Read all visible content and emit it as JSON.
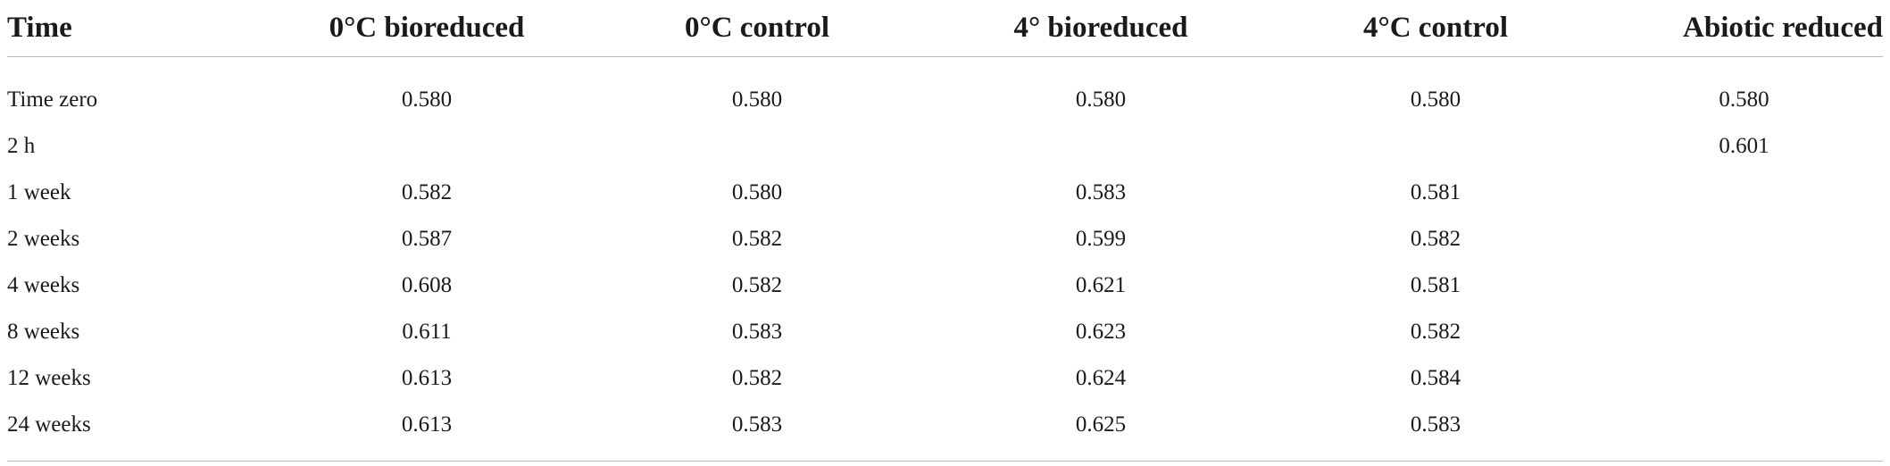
{
  "table": {
    "headers": [
      "Time",
      "0°C bioreduced",
      "0°C control",
      "4° bioreduced",
      "4°C control",
      "Abiotic reduced"
    ],
    "rows": [
      [
        "Time zero",
        "0.580",
        "0.580",
        "0.580",
        "0.580",
        "0.580"
      ],
      [
        "2 h",
        "",
        "",
        "",
        "",
        "0.601"
      ],
      [
        "1 week",
        "0.582",
        "0.580",
        "0.583",
        "0.581",
        ""
      ],
      [
        "2 weeks",
        "0.587",
        "0.582",
        "0.599",
        "0.582",
        ""
      ],
      [
        "4 weeks",
        "0.608",
        "0.582",
        "0.621",
        "0.581",
        ""
      ],
      [
        "8 weeks",
        "0.611",
        "0.583",
        "0.623",
        "0.582",
        ""
      ],
      [
        "12 weeks",
        "0.613",
        "0.582",
        "0.624",
        "0.584",
        ""
      ],
      [
        "24 weeks",
        "0.613",
        "0.583",
        "0.625",
        "0.583",
        ""
      ]
    ]
  }
}
